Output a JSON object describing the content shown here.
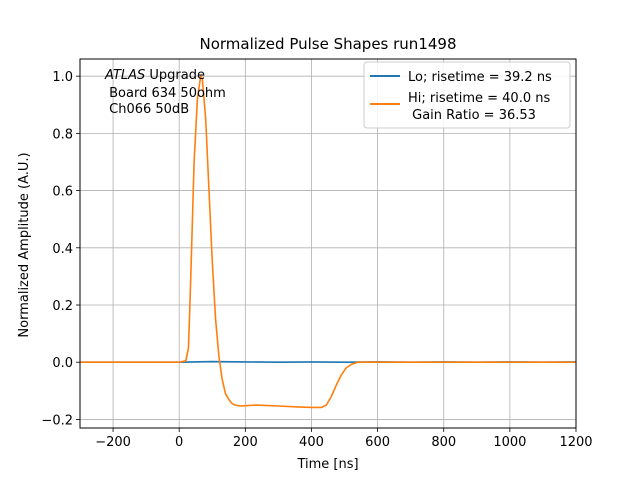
{
  "chart_data": {
    "type": "line",
    "title": "Normalized Pulse Shapes run1498",
    "xlabel": "Time [ns]",
    "ylabel": "Normalized Amplitude (A.U.)",
    "xlim": [
      -300,
      1200
    ],
    "ylim": [
      -0.23,
      1.06
    ],
    "xticks": [
      -200,
      0,
      200,
      400,
      600,
      800,
      1000,
      1200
    ],
    "xtick_labels": [
      "−200",
      "0",
      "200",
      "400",
      "600",
      "800",
      "1000",
      "1200"
    ],
    "yticks": [
      -0.2,
      0.0,
      0.2,
      0.4,
      0.6,
      0.8,
      1.0
    ],
    "ytick_labels": [
      "−0.2",
      "0.0",
      "0.2",
      "0.4",
      "0.6",
      "0.8",
      "1.0"
    ],
    "grid": true,
    "legend_position": "top-right",
    "annotation": {
      "line1_italic": "ATLAS",
      "line1_rest": " Upgrade",
      "line2": " Board 634 50ohm",
      "line3": " Ch066 50dB"
    },
    "series": [
      {
        "name": "Lo; risetime = 39.2 ns",
        "color": "#1f77b4",
        "x": [
          -300,
          0,
          100,
          200,
          300,
          400,
          500,
          600,
          700,
          800,
          900,
          1000,
          1100,
          1200
        ],
        "y": [
          0.0,
          0.0,
          0.002,
          0.001,
          0.0,
          0.001,
          0.0,
          0.001,
          0.0,
          0.001,
          0.0,
          0.001,
          0.0,
          0.001
        ]
      },
      {
        "name": "Hi; risetime = 40.0 ns",
        "name_line2": " Gain Ratio = 36.53",
        "color": "#ff7f0e",
        "x": [
          -300,
          -100,
          0,
          20,
          28,
          35,
          45,
          55,
          65,
          70,
          80,
          90,
          100,
          110,
          120,
          130,
          140,
          150,
          160,
          170,
          185,
          200,
          230,
          260,
          300,
          350,
          400,
          430,
          445,
          460,
          475,
          490,
          505,
          520,
          540,
          600,
          700,
          800,
          900,
          1000,
          1100,
          1200
        ],
        "y": [
          0.0,
          0.0,
          0.0,
          0.005,
          0.05,
          0.3,
          0.7,
          0.92,
          1.0,
          0.99,
          0.85,
          0.6,
          0.35,
          0.15,
          0.02,
          -0.06,
          -0.11,
          -0.13,
          -0.145,
          -0.15,
          -0.153,
          -0.152,
          -0.15,
          -0.151,
          -0.153,
          -0.156,
          -0.158,
          -0.158,
          -0.15,
          -0.12,
          -0.08,
          -0.045,
          -0.02,
          -0.008,
          0.0,
          0.0,
          0.0,
          0.0,
          0.0,
          0.0,
          0.0,
          0.0
        ]
      }
    ]
  }
}
